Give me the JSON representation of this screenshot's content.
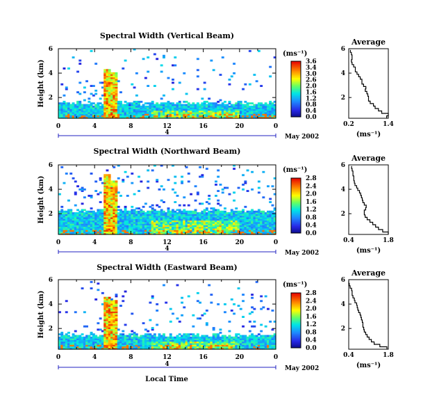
{
  "figure": {
    "xlabel": "Local Time",
    "date_label": "May 2002",
    "day_label": "4"
  },
  "chart_data": [
    {
      "type": "heatmap",
      "title": "Spectral Width (Vertical Beam)",
      "ylabel": "Height (km)",
      "xlim": [
        0,
        24
      ],
      "ylim": [
        0.3,
        6
      ],
      "xticks": [
        "0",
        "4",
        "8",
        "12",
        "16",
        "20",
        "0"
      ],
      "yticks": [
        "2",
        "4",
        "6"
      ],
      "colorbar": {
        "unit": "(ms⁻¹)",
        "range": [
          0,
          3.6
        ],
        "ticks": [
          "3.6",
          "3.4",
          "3.0",
          "2.6",
          "2.0",
          "1.6",
          "1.2",
          "0.8",
          "0.4",
          "0.0"
        ]
      },
      "features": {
        "mean_top_km": 1.3,
        "spike_hours": [
          5.2,
          6.1
        ],
        "spike_top_km": [
          4.3,
          4.0
        ],
        "scatter_density": 0.05
      },
      "profile": {
        "title": "Average",
        "xlabel": "(ms⁻¹)",
        "xlim": [
          0.2,
          1.4
        ],
        "xticks": [
          "0.2",
          "1.4"
        ],
        "yticks": [
          "2",
          "4",
          "6"
        ],
        "heights": [
          0.4,
          0.6,
          0.8,
          1.0,
          1.2,
          1.4,
          1.6,
          1.8,
          2.0,
          2.2,
          2.4,
          2.6,
          2.8,
          3.0,
          3.2,
          3.4,
          3.6,
          3.8,
          4.0,
          4.2,
          4.4,
          4.6,
          4.8,
          5.0,
          5.2,
          5.4,
          5.6,
          5.8
        ],
        "values": [
          1.35,
          1.4,
          1.2,
          1.1,
          1.0,
          0.95,
          0.85,
          0.8,
          0.8,
          0.78,
          0.75,
          0.7,
          0.72,
          0.65,
          0.6,
          0.6,
          0.55,
          0.5,
          0.45,
          0.4,
          0.4,
          0.35,
          0.3,
          0.28,
          0.3,
          0.3,
          0.28,
          0.25
        ]
      }
    },
    {
      "type": "heatmap",
      "title": "Spectral Width (Northward Beam)",
      "ylabel": "Height (km)",
      "xlim": [
        0,
        24
      ],
      "ylim": [
        0.3,
        6
      ],
      "xticks": [
        "0",
        "4",
        "8",
        "12",
        "16",
        "20",
        "0"
      ],
      "yticks": [
        "2",
        "4",
        "6"
      ],
      "colorbar": {
        "unit": "(ms⁻¹)",
        "range": [
          0,
          2.8
        ],
        "ticks": [
          "2.8",
          "2.4",
          "2.0",
          "1.6",
          "1.2",
          "0.8",
          "0.4",
          "0.0"
        ]
      },
      "features": {
        "mean_top_km": 2.0,
        "spike_hours": [
          5.2,
          6.0
        ],
        "spike_top_km": [
          5.2,
          4.6
        ],
        "scatter_density": 0.1
      },
      "profile": {
        "title": "Average",
        "xlabel": "(ms⁻¹)",
        "xlim": [
          0.4,
          1.8
        ],
        "xticks": [
          "0.4",
          "1.8"
        ],
        "yticks": [
          "2",
          "4",
          "6"
        ],
        "heights": [
          0.4,
          0.6,
          0.8,
          1.0,
          1.2,
          1.4,
          1.6,
          1.8,
          2.0,
          2.2,
          2.4,
          2.6,
          2.8,
          3.0,
          3.2,
          3.4,
          3.6,
          3.8,
          4.0,
          4.2,
          4.4,
          4.6,
          4.8,
          5.0,
          5.2,
          5.4,
          5.6,
          5.8
        ],
        "values": [
          1.8,
          1.6,
          1.45,
          1.35,
          1.25,
          1.15,
          1.05,
          0.98,
          0.95,
          0.95,
          1.0,
          1.02,
          0.95,
          0.9,
          0.88,
          0.85,
          0.82,
          0.78,
          0.72,
          0.68,
          0.62,
          0.6,
          0.58,
          0.58,
          0.55,
          0.55,
          0.52,
          0.5
        ]
      }
    },
    {
      "type": "heatmap",
      "title": "Spectral Width (Eastward Beam)",
      "ylabel": "Height (km)",
      "xlim": [
        0,
        24
      ],
      "ylim": [
        0.3,
        6
      ],
      "xticks": [
        "0",
        "4",
        "8",
        "12",
        "16",
        "20",
        "0"
      ],
      "yticks": [
        "2",
        "4",
        "6"
      ],
      "colorbar": {
        "unit": "(ms⁻¹)",
        "range": [
          0,
          2.8
        ],
        "ticks": [
          "2.8",
          "2.4",
          "2.0",
          "1.6",
          "1.2",
          "0.8",
          "0.4",
          "0.0"
        ]
      },
      "features": {
        "mean_top_km": 1.2,
        "spike_hours": [
          5.3,
          6.0
        ],
        "spike_top_km": [
          4.5,
          4.3
        ],
        "scatter_density": 0.06
      },
      "profile": {
        "title": "Average",
        "xlabel": "(ms⁻¹)",
        "xlim": [
          0.4,
          1.8
        ],
        "xticks": [
          "0.4",
          "1.8"
        ],
        "yticks": [
          "2",
          "4",
          "6"
        ],
        "heights": [
          0.4,
          0.6,
          0.8,
          1.0,
          1.2,
          1.4,
          1.6,
          1.8,
          2.0,
          2.2,
          2.4,
          2.6,
          2.8,
          3.0,
          3.2,
          3.4,
          3.6,
          3.8,
          4.0,
          4.2,
          4.4,
          4.6,
          4.8,
          5.0,
          5.2,
          5.4,
          5.6,
          5.8
        ],
        "values": [
          1.75,
          1.5,
          1.3,
          1.2,
          1.12,
          1.05,
          1.0,
          0.95,
          0.93,
          0.9,
          0.9,
          0.88,
          0.85,
          0.83,
          0.8,
          0.75,
          0.72,
          0.7,
          0.68,
          0.62,
          0.6,
          0.55,
          0.52,
          0.52,
          0.5,
          0.45,
          0.42,
          0.4
        ]
      }
    }
  ]
}
